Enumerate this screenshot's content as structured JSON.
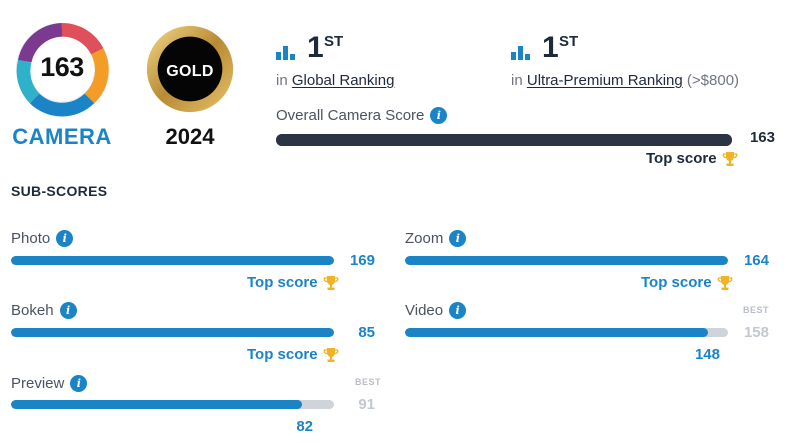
{
  "badges": {
    "score": "163",
    "category": "CAMERA",
    "award": "GOLD",
    "year": "2024",
    "colors": {
      "ring_blue": "#1a84c6",
      "ring_purple": "#7b3a8f",
      "ring_red": "#e0505a",
      "ring_orange": "#f39c27",
      "gold": "#c9a24a"
    }
  },
  "rankings": [
    {
      "rank": "1",
      "suffix": "ST",
      "prefix": "in",
      "name": "Global Ranking",
      "note": ""
    },
    {
      "rank": "1",
      "suffix": "ST",
      "prefix": "in",
      "name": "Ultra-Premium Ranking",
      "note": "(>$800)"
    }
  ],
  "overall": {
    "label": "Overall Camera Score",
    "score": "163",
    "fraction": 1.0,
    "top_label": "Top score"
  },
  "subscores_title": "SUB-SCORES",
  "subscores": {
    "photo": {
      "label": "Photo",
      "score": "169",
      "fraction": 1.0,
      "top_label": "Top score"
    },
    "zoom": {
      "label": "Zoom",
      "score": "164",
      "fraction": 1.0,
      "top_label": "Top score"
    },
    "bokeh": {
      "label": "Bokeh",
      "score": "85",
      "fraction": 1.0,
      "top_label": "Top score"
    },
    "video": {
      "label": "Video",
      "score": "148",
      "best": "158",
      "best_label": "BEST",
      "fraction": 0.937
    },
    "preview": {
      "label": "Preview",
      "score": "82",
      "best": "91",
      "best_label": "BEST",
      "fraction": 0.901
    }
  },
  "info_glyph": "i",
  "colors": {
    "accent": "#1a84c6",
    "dark": "#2b3445",
    "track": "#cfd3da",
    "trophy": "#f0b323"
  }
}
